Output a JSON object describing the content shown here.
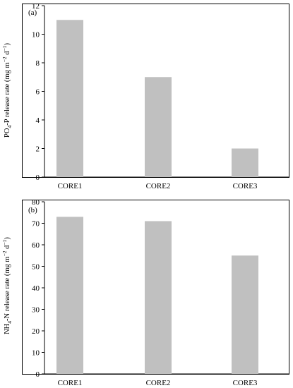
{
  "chart_data": [
    {
      "type": "bar",
      "panel_label": "(a)",
      "categories": [
        "CORE1",
        "CORE2",
        "CORE3"
      ],
      "values": [
        11,
        7,
        2
      ],
      "ylabel": {
        "species": "PO",
        "sub": "4",
        "suffix": "-P release rate (mg m",
        "exp1": "−2",
        "mid": " d",
        "exp2": "−1",
        "close": ")"
      },
      "ylim": [
        0,
        12
      ],
      "yticks": [
        0,
        2,
        4,
        6,
        8,
        10,
        12
      ],
      "bar_color": "#c0c0c0",
      "grid": false
    },
    {
      "type": "bar",
      "panel_label": "(b)",
      "categories": [
        "CORE1",
        "CORE2",
        "CORE3"
      ],
      "values": [
        73,
        71,
        55
      ],
      "ylabel": {
        "species": "NH",
        "sub": "4",
        "suffix": "-N release rate (mg m",
        "exp1": "−2",
        "mid": " d",
        "exp2": "−1",
        "close": ")"
      },
      "ylim": [
        0,
        80
      ],
      "yticks": [
        0,
        10,
        20,
        30,
        40,
        50,
        60,
        70,
        80
      ],
      "bar_color": "#c0c0c0",
      "grid": false
    }
  ]
}
